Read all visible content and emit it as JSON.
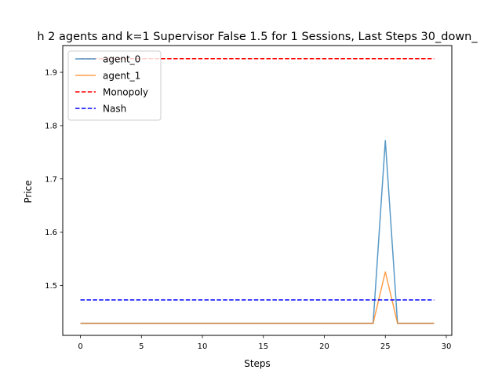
{
  "chart_data": {
    "type": "line",
    "title": "h 2 agents and k=1 Supervisor False 1.5 for 1 Sessions, Last Steps 30_down_",
    "xlabel": "Steps",
    "ylabel": "Price",
    "xlim": [
      -1.45,
      30.45
    ],
    "ylim": [
      1.4064,
      1.9502
    ],
    "x_ticks": [
      0,
      5,
      10,
      15,
      20,
      25,
      30
    ],
    "y_ticks": [
      1.5,
      1.6,
      1.7,
      1.8,
      1.9
    ],
    "grid": false,
    "legend_position": "upper-left",
    "x": [
      0,
      1,
      2,
      3,
      4,
      5,
      6,
      7,
      8,
      9,
      10,
      11,
      12,
      13,
      14,
      15,
      16,
      17,
      18,
      19,
      20,
      21,
      22,
      23,
      24,
      25,
      26,
      27,
      28,
      29
    ],
    "series": [
      {
        "name": "agent_0",
        "color": "#1f77b4",
        "style": "solid",
        "alpha": 0.75,
        "values": [
          1.4291,
          1.4291,
          1.4291,
          1.4291,
          1.4291,
          1.4291,
          1.4291,
          1.4291,
          1.4291,
          1.4291,
          1.4291,
          1.4291,
          1.4291,
          1.4291,
          1.4291,
          1.4291,
          1.4291,
          1.4291,
          1.4291,
          1.4291,
          1.4291,
          1.4291,
          1.4291,
          1.4291,
          1.4291,
          1.7721,
          1.4291,
          1.4291,
          1.4291,
          1.4291
        ]
      },
      {
        "name": "agent_1",
        "color": "#ff7f0e",
        "style": "solid",
        "alpha": 0.75,
        "values": [
          1.4291,
          1.4291,
          1.4291,
          1.4291,
          1.4291,
          1.4291,
          1.4291,
          1.4291,
          1.4291,
          1.4291,
          1.4291,
          1.4291,
          1.4291,
          1.4291,
          1.4291,
          1.4291,
          1.4291,
          1.4291,
          1.4291,
          1.4291,
          1.4291,
          1.4291,
          1.4291,
          1.4291,
          1.4291,
          1.5256,
          1.4291,
          1.4291,
          1.4291,
          1.4291
        ]
      },
      {
        "name": "Monopoly",
        "color": "#ff0000",
        "style": "dashed",
        "alpha": 1,
        "values": [
          1.9255,
          1.9255,
          1.9255,
          1.9255,
          1.9255,
          1.9255,
          1.9255,
          1.9255,
          1.9255,
          1.9255,
          1.9255,
          1.9255,
          1.9255,
          1.9255,
          1.9255,
          1.9255,
          1.9255,
          1.9255,
          1.9255,
          1.9255,
          1.9255,
          1.9255,
          1.9255,
          1.9255,
          1.9255,
          1.9255,
          1.9255,
          1.9255,
          1.9255,
          1.9255
        ]
      },
      {
        "name": "Nash",
        "color": "#0000ff",
        "style": "dashed",
        "alpha": 1,
        "values": [
          1.4729,
          1.4729,
          1.4729,
          1.4729,
          1.4729,
          1.4729,
          1.4729,
          1.4729,
          1.4729,
          1.4729,
          1.4729,
          1.4729,
          1.4729,
          1.4729,
          1.4729,
          1.4729,
          1.4729,
          1.4729,
          1.4729,
          1.4729,
          1.4729,
          1.4729,
          1.4729,
          1.4729,
          1.4729,
          1.4729,
          1.4729,
          1.4729,
          1.4729,
          1.4729
        ]
      }
    ]
  }
}
